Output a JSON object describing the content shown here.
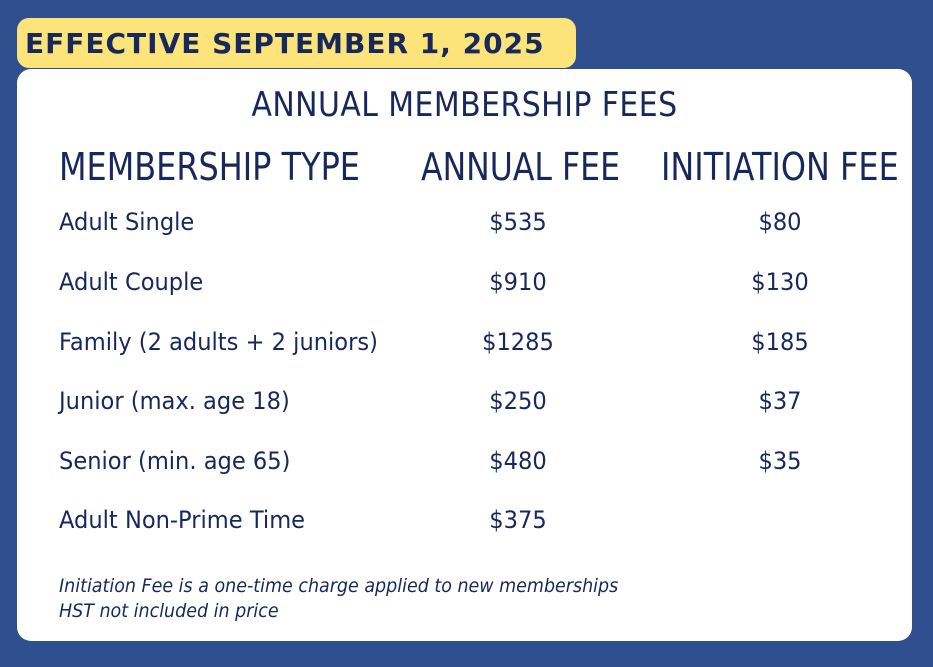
{
  "banner": "EFFECTIVE SEPTEMBER 1, 2025",
  "title": "ANNUAL MEMBERSHIP FEES",
  "columns": {
    "type": "MEMBERSHIP TYPE",
    "annual": "ANNUAL FEE",
    "initiation": "INITIATION FEE"
  },
  "rows": [
    {
      "type": "Adult Single",
      "annual": "$535",
      "initiation": "$80"
    },
    {
      "type": "Adult Couple",
      "annual": "$910",
      "initiation": "$130"
    },
    {
      "type": "Family (2 adults + 2 juniors)",
      "annual": "$1285",
      "initiation": "$185"
    },
    {
      "type": "Junior (max. age 18)",
      "annual": "$250",
      "initiation": "$37"
    },
    {
      "type": "Senior (min. age 65)",
      "annual": "$480",
      "initiation": "$35"
    },
    {
      "type": "Adult Non-Prime Time",
      "annual": "$375",
      "initiation": ""
    }
  ],
  "notes": [
    "Initiation Fee is a one-time charge applied to new memberships",
    "HST not included in price"
  ],
  "colors": {
    "background": "#2f4f8f",
    "banner": "#fde47a",
    "text": "#17285c",
    "card": "#ffffff"
  }
}
